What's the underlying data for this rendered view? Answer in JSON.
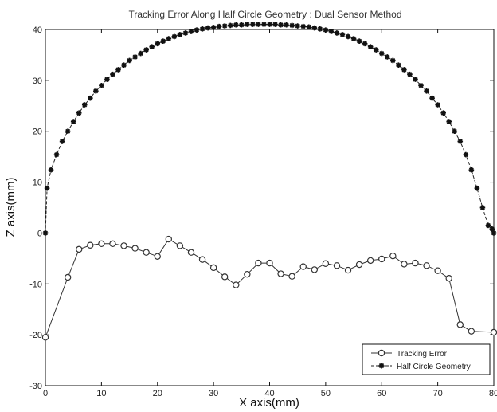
{
  "chart_data": {
    "type": "line",
    "title": "Tracking Error Along Half Circle Geometry : Dual Sensor Method",
    "xlabel": "X axis(mm)",
    "ylabel": "Z axis(mm)",
    "xlim": [
      0,
      80
    ],
    "ylim": [
      -30,
      40
    ],
    "xticks": [
      "0",
      "10",
      "20",
      "30",
      "40",
      "50",
      "60",
      "70",
      "80"
    ],
    "yticks": [
      "-30",
      "-20",
      "-10",
      "0",
      "10",
      "20",
      "30",
      "40"
    ],
    "grid": false,
    "legend_position": "bottom-right",
    "series": [
      {
        "name": "Tracking Error",
        "marker": "circle",
        "x": [
          0,
          4,
          6,
          8,
          10,
          12,
          14,
          16,
          18,
          20,
          22,
          24,
          26,
          28,
          30,
          32,
          34,
          36,
          38,
          40,
          42,
          44,
          46,
          48,
          50,
          52,
          54,
          56,
          58,
          60,
          62,
          64,
          66,
          68,
          70,
          72,
          74,
          76,
          80
        ],
        "y": [
          -20.5,
          -8.7,
          -3.2,
          -2.4,
          -2.1,
          -2.1,
          -2.5,
          -3.0,
          -3.8,
          -4.6,
          -1.2,
          -2.5,
          -3.8,
          -5.2,
          -6.8,
          -8.6,
          -10.2,
          -8.1,
          -5.9,
          -5.9,
          -8.0,
          -8.5,
          -6.6,
          -7.2,
          -6.0,
          -6.4,
          -7.3,
          -6.2,
          -5.4,
          -5.1,
          -4.5,
          -6.1,
          -5.9,
          -6.4,
          -7.4,
          -8.9,
          -18.0,
          -19.3,
          -19.5
        ]
      },
      {
        "name": "Half Circle Geometry",
        "marker": "star",
        "x": [
          0,
          0.3,
          1,
          2,
          3,
          4,
          5,
          6,
          7,
          8,
          9,
          10,
          11,
          12,
          13,
          14,
          15,
          16,
          17,
          18,
          19,
          20,
          21,
          22,
          23,
          24,
          25,
          26,
          27,
          28,
          29,
          30,
          31,
          32,
          33,
          34,
          35,
          36,
          37,
          38,
          39,
          40,
          41,
          42,
          43,
          44,
          45,
          46,
          47,
          48,
          49,
          50,
          51,
          52,
          53,
          54,
          55,
          56,
          57,
          58,
          59,
          60,
          61,
          62,
          63,
          64,
          65,
          66,
          67,
          68,
          69,
          70,
          71,
          72,
          73,
          74,
          75,
          76,
          77,
          78,
          79,
          79.7,
          80
        ],
        "y": [
          0,
          8.8,
          12.4,
          15.4,
          18.0,
          20.0,
          21.9,
          23.6,
          25.2,
          26.5,
          27.9,
          29.0,
          30.2,
          31.2,
          32.1,
          33.0,
          33.9,
          34.6,
          35.3,
          36.0,
          36.6,
          37.2,
          37.7,
          38.2,
          38.6,
          39.0,
          39.3,
          39.6,
          39.9,
          40.1,
          40.3,
          40.4,
          40.6,
          40.7,
          40.8,
          40.9,
          40.9,
          41.0,
          41.0,
          41.0,
          41.0,
          41.0,
          41.0,
          40.9,
          40.9,
          40.8,
          40.7,
          40.6,
          40.5,
          40.3,
          40.1,
          39.9,
          39.6,
          39.3,
          39.0,
          38.6,
          38.2,
          37.7,
          37.2,
          36.6,
          36.0,
          35.3,
          34.6,
          33.9,
          33.0,
          32.1,
          31.2,
          30.2,
          29.0,
          27.9,
          26.5,
          25.2,
          23.6,
          21.9,
          20.0,
          18.0,
          15.4,
          12.4,
          8.8,
          5.0,
          1.5,
          0.8,
          0
        ]
      }
    ]
  }
}
